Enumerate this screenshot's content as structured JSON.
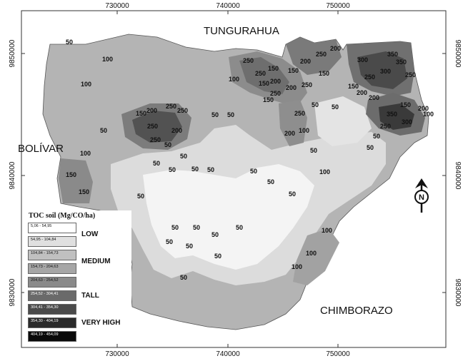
{
  "map": {
    "top_ticks": [
      "730000",
      "740000",
      "750000"
    ],
    "bottom_ticks": [
      "730000",
      "740000",
      "750000"
    ],
    "left_ticks": [
      "9850000",
      "9840000",
      "9830000"
    ],
    "right_ticks": [
      "9850000",
      "9840000",
      "9830000"
    ],
    "regions": {
      "north": "TUNGURAHUA",
      "west": "BOLÍVAR",
      "south": "CHIMBORAZO"
    },
    "north_symbol": "N"
  },
  "legend": {
    "title": "TOC soil (Mg/CO/ha)",
    "ranges": [
      "5,06 - 54,95",
      "54,95 - 104,84",
      "104,84 - 154,73",
      "154,73 - 204,63",
      "204,63 - 254,52",
      "254,52 - 304,41",
      "304,41 - 354,30",
      "354,30 - 404,19",
      "404,19 - 454,09"
    ],
    "colors": [
      "#ffffff",
      "#e0e0e0",
      "#c0c0c0",
      "#a6a6a6",
      "#8a8a8a",
      "#6a6a6a",
      "#4a4a4a",
      "#2a2a2a",
      "#0a0a0a"
    ],
    "classes": [
      "LOW",
      "MEDIUM",
      "TALL",
      "VERY HIGH"
    ]
  },
  "contour_labels": [
    "50",
    "100",
    "150",
    "200",
    "250",
    "300",
    "350"
  ]
}
